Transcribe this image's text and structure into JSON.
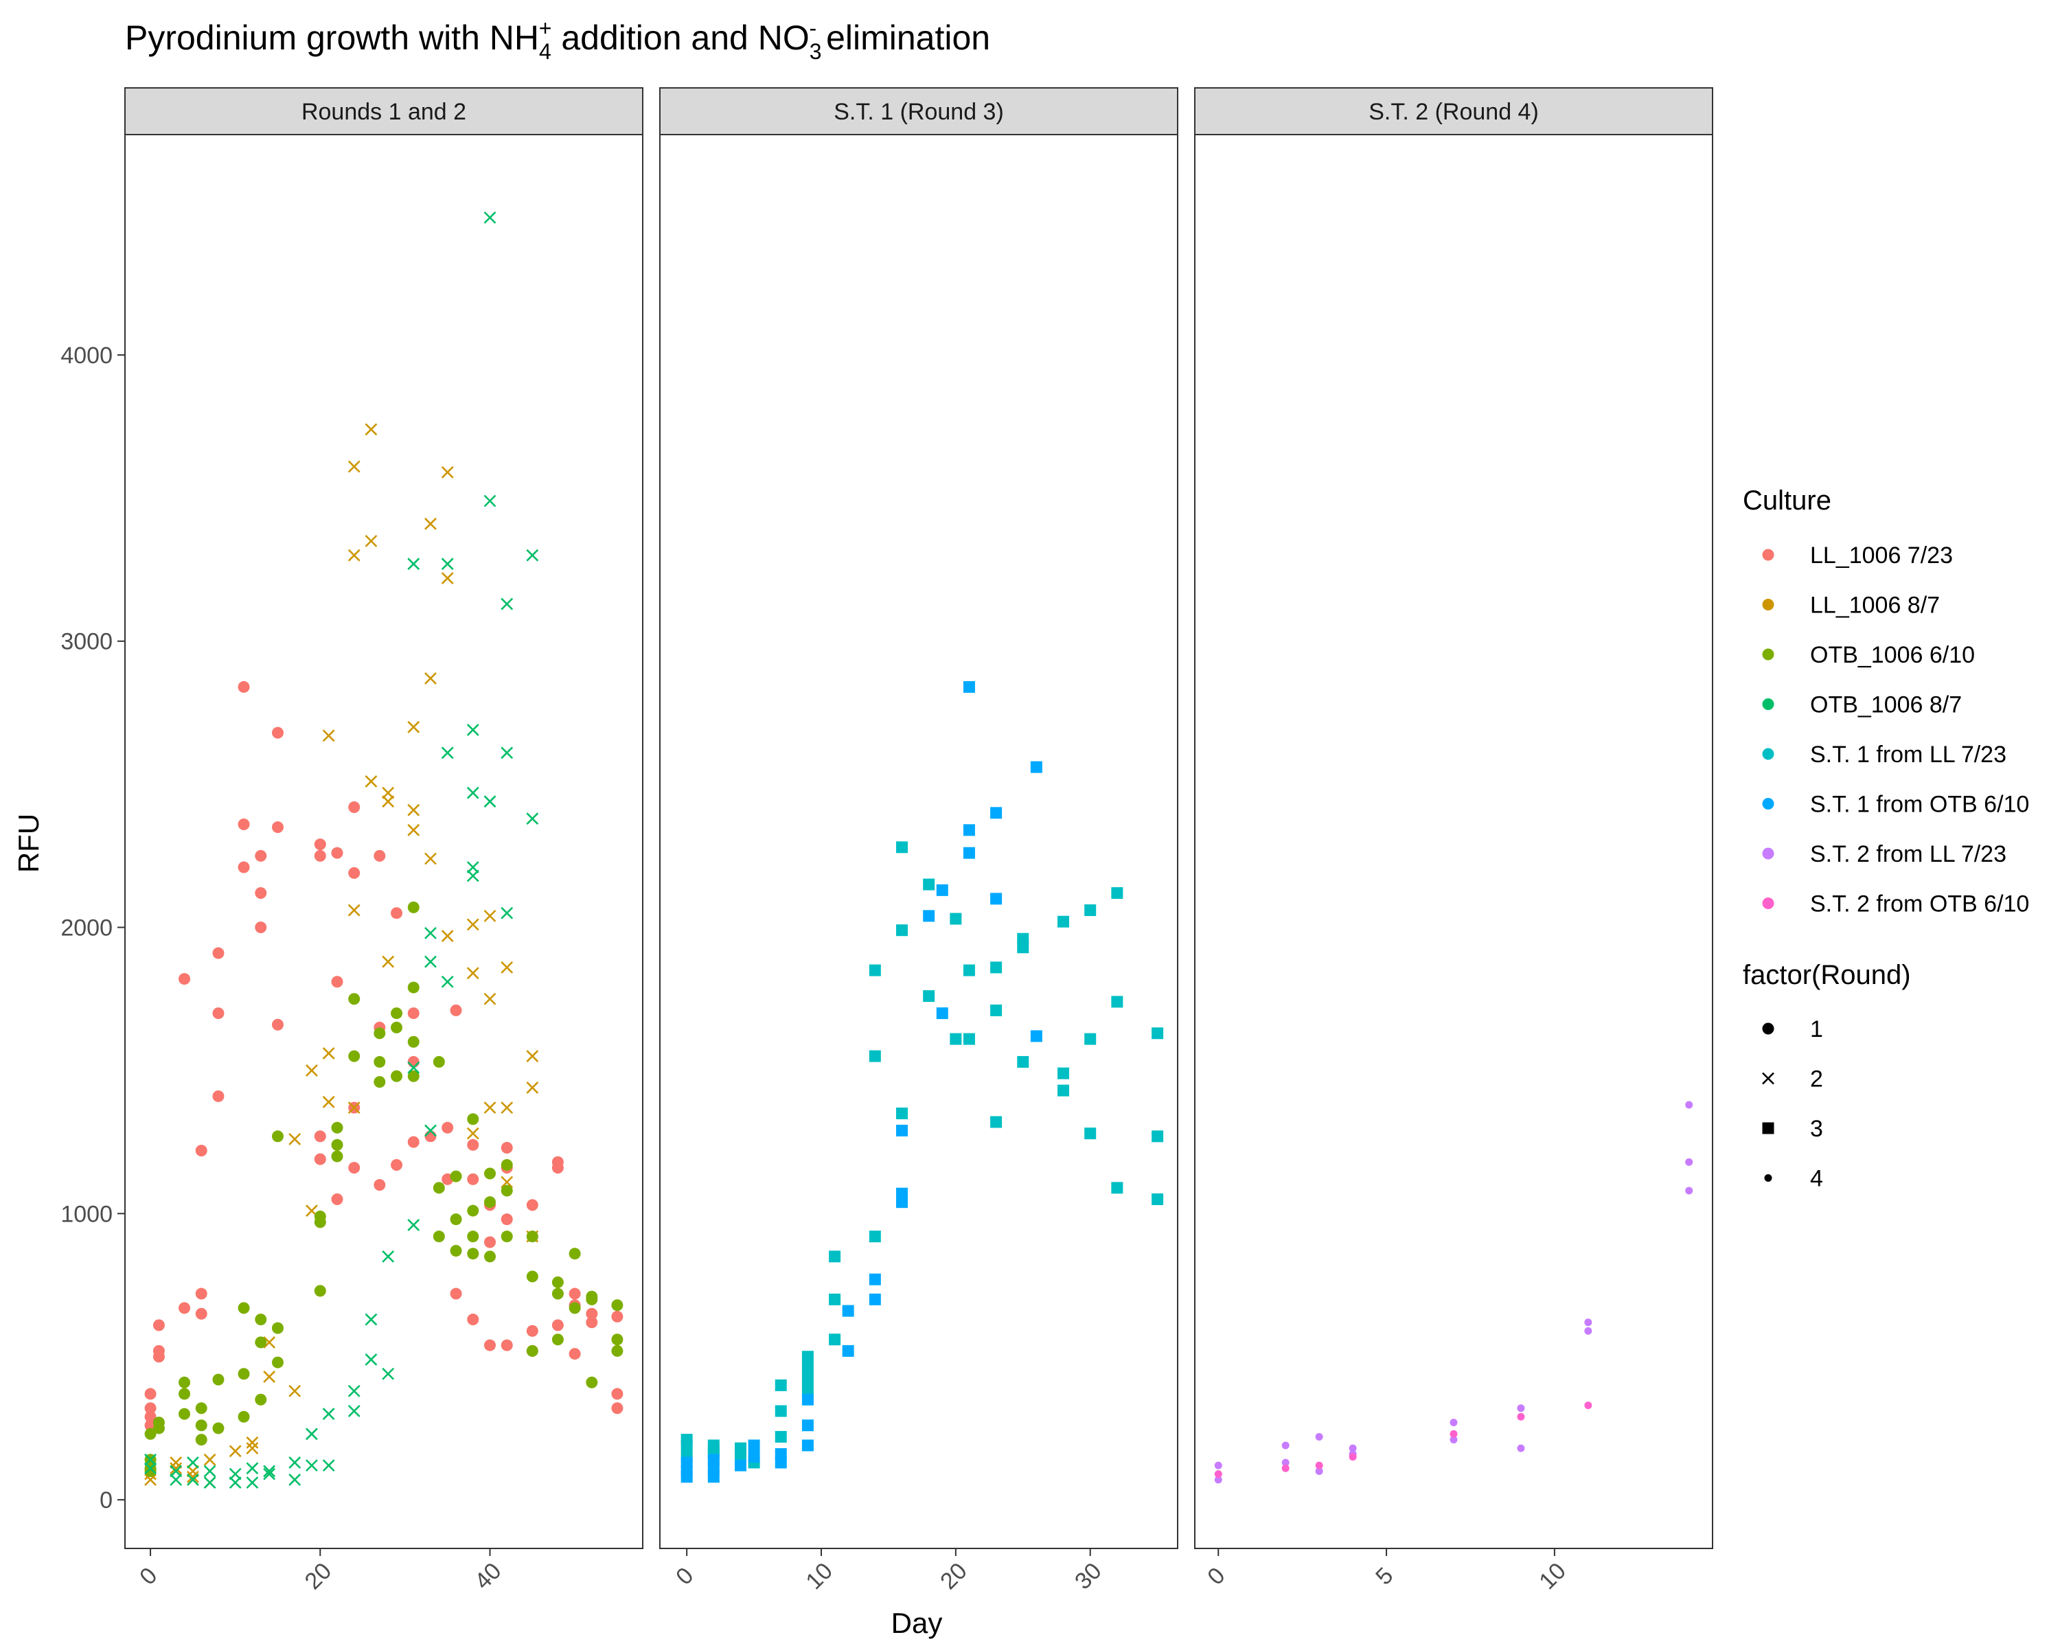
{
  "chart_data": {
    "type": "scatter",
    "title_parts": {
      "t1": "Pyrodinium growth with NH",
      "nh_sub": "4",
      "nh_sup": "+",
      "t2": " addition and NO",
      "no_sub": "3",
      "no_sup": "-",
      "t3": " elimination"
    },
    "xlabel": "Day",
    "ylabel": "RFU",
    "ylim": [
      -170,
      4770
    ],
    "y_ticks": [
      0,
      1000,
      2000,
      3000,
      4000
    ],
    "grid": false,
    "legend_position": "right",
    "legend": {
      "culture_title": "Culture",
      "cultures": [
        {
          "name": "LL_1006 7/23",
          "color": "#F8766D"
        },
        {
          "name": "LL_1006 8/7",
          "color": "#CD9600"
        },
        {
          "name": "OTB_1006 6/10",
          "color": "#7CAE00"
        },
        {
          "name": "OTB_1006 8/7",
          "color": "#00BE67"
        },
        {
          "name": "S.T. 1 from LL 7/23",
          "color": "#00BFC4"
        },
        {
          "name": "S.T. 1 from OTB 6/10",
          "color": "#00A9FF"
        },
        {
          "name": "S.T. 2 from LL 7/23",
          "color": "#C77CFF"
        },
        {
          "name": "S.T. 2 from OTB 6/10",
          "color": "#FF61CC"
        }
      ],
      "round_title": "factor(Round)",
      "rounds": [
        {
          "label": "1",
          "shape": "circle"
        },
        {
          "label": "2",
          "shape": "cross"
        },
        {
          "label": "3",
          "shape": "square"
        },
        {
          "label": "4",
          "shape": "small-circle"
        }
      ]
    },
    "facets": [
      {
        "label": "Rounds 1 and 2",
        "xlim": [
          -3,
          58
        ],
        "x_ticks": [
          0,
          20,
          40
        ],
        "series": [
          {
            "name": "LL_1006 7/23",
            "color": "#F8766D",
            "shape": "circle",
            "x": [
              0,
              0,
              0,
              0,
              1,
              1,
              1,
              4,
              4,
              6,
              6,
              6,
              8,
              8,
              8,
              11,
              11,
              11,
              13,
              13,
              13,
              15,
              15,
              15,
              20,
              20,
              20,
              20,
              22,
              22,
              22,
              24,
              24,
              24,
              24,
              27,
              27,
              27,
              29,
              29,
              31,
              31,
              31,
              33,
              35,
              35,
              36,
              36,
              38,
              38,
              38,
              40,
              40,
              40,
              42,
              42,
              42,
              42,
              45,
              45,
              45,
              45,
              48,
              48,
              48,
              50,
              50,
              50,
              52,
              52,
              55,
              55,
              55
            ],
            "y": [
              370,
              320,
              290,
              260,
              610,
              520,
              500,
              1820,
              670,
              1220,
              720,
              650,
              1910,
              1700,
              1410,
              2840,
              2360,
              2210,
              2250,
              2120,
              2000,
              2680,
              2350,
              1660,
              2290,
              2250,
              1190,
              1270,
              2260,
              1810,
              1050,
              2420,
              2190,
              1370,
              1160,
              2250,
              1650,
              1100,
              2050,
              1170,
              1700,
              1530,
              1250,
              1270,
              1300,
              1120,
              1710,
              720,
              1240,
              1120,
              630,
              1030,
              900,
              540,
              1230,
              1160,
              980,
              540,
              1030,
              920,
              590,
              520,
              1180,
              1160,
              610,
              720,
              680,
              510,
              650,
              620,
              640,
              370,
              320
            ]
          },
          {
            "name": "LL_1006 8/7",
            "color": "#CD9600",
            "shape": "cross",
            "x": [
              0,
              0,
              3,
              3,
              5,
              5,
              7,
              7,
              10,
              12,
              12,
              14,
              14,
              17,
              17,
              19,
              19,
              21,
              21,
              21,
              24,
              24,
              24,
              24,
              26,
              26,
              26,
              28,
              28,
              28,
              31,
              31,
              31,
              33,
              33,
              33,
              35,
              35,
              35,
              38,
              38,
              38,
              40,
              40,
              40,
              42,
              42,
              42,
              45,
              45,
              45
            ],
            "y": [
              90,
              70,
              130,
              110,
              100,
              80,
              140,
              60,
              170,
              200,
              180,
              550,
              430,
              1260,
              380,
              1500,
              1010,
              2670,
              1560,
              1390,
              3610,
              3300,
              2060,
              1370,
              3740,
              3350,
              2510,
              2470,
              2440,
              1880,
              2700,
              2410,
              2340,
              3410,
              2870,
              2240,
              3590,
              3220,
              1970,
              2010,
              1840,
              1280,
              2040,
              1750,
              1370,
              1860,
              1370,
              1110,
              1550,
              1440,
              920
            ]
          },
          {
            "name": "OTB_1006 6/10",
            "color": "#7CAE00",
            "shape": "circle",
            "x": [
              0,
              0,
              0,
              0,
              1,
              1,
              4,
              4,
              4,
              6,
              6,
              6,
              8,
              8,
              11,
              11,
              11,
              13,
              13,
              13,
              15,
              15,
              15,
              20,
              20,
              20,
              22,
              22,
              22,
              24,
              24,
              27,
              27,
              27,
              29,
              29,
              29,
              31,
              31,
              31,
              31,
              34,
              34,
              34,
              36,
              36,
              36,
              38,
              38,
              38,
              38,
              40,
              40,
              40,
              42,
              42,
              42,
              45,
              45,
              45,
              48,
              48,
              48,
              50,
              50,
              52,
              52,
              52,
              55,
              55,
              55
            ],
            "y": [
              230,
              140,
              110,
              100,
              270,
              250,
              410,
              370,
              300,
              320,
              260,
              210,
              420,
              250,
              670,
              440,
              290,
              630,
              550,
              350,
              600,
              480,
              1270,
              990,
              970,
              730,
              1300,
              1240,
              1200,
              1750,
              1550,
              1630,
              1530,
              1460,
              1700,
              1650,
              1480,
              2070,
              1790,
              1600,
              1480,
              1530,
              1090,
              920,
              1130,
              980,
              870,
              1330,
              920,
              860,
              1010,
              1140,
              1040,
              850,
              1170,
              1080,
              920,
              920,
              780,
              520,
              760,
              720,
              560,
              860,
              670,
              710,
              410,
              700,
              680,
              560,
              520
            ]
          },
          {
            "name": "OTB_1006 8/7",
            "color": "#00BE67",
            "shape": "cross",
            "x": [
              0,
              0,
              3,
              3,
              5,
              5,
              7,
              7,
              10,
              10,
              12,
              12,
              14,
              14,
              17,
              17,
              19,
              19,
              21,
              21,
              24,
              24,
              26,
              26,
              28,
              28,
              31,
              31,
              31,
              33,
              33,
              33,
              35,
              35,
              35,
              38,
              38,
              38,
              38,
              40,
              40,
              40,
              42,
              42,
              42,
              45,
              45
            ],
            "y": [
              140,
              110,
              100,
              70,
              130,
              70,
              100,
              60,
              90,
              60,
              110,
              60,
              100,
              90,
              130,
              70,
              230,
              120,
              300,
              120,
              380,
              310,
              630,
              490,
              440,
              850,
              3270,
              1510,
              960,
              1980,
              1880,
              1290,
              3270,
              2610,
              1810,
              2690,
              2470,
              2210,
              2180,
              4480,
              3490,
              2440,
              3130,
              2610,
              2050,
              3300,
              2380
            ]
          }
        ]
      },
      {
        "label": "S.T. 1 (Round 3)",
        "xlim": [
          -2,
          36.5
        ],
        "x_ticks": [
          0,
          10,
          20,
          30
        ],
        "series": [
          {
            "name": "S.T. 1 from LL 7/23",
            "color": "#00BFC4",
            "shape": "square",
            "x": [
              0,
              0,
              0,
              2,
              2,
              2,
              4,
              4,
              4,
              5,
              7,
              7,
              7,
              9,
              9,
              9,
              9,
              11,
              11,
              11,
              14,
              14,
              14,
              16,
              16,
              16,
              18,
              18,
              20,
              20,
              21,
              21,
              23,
              23,
              23,
              25,
              25,
              25,
              28,
              28,
              28,
              30,
              30,
              30,
              32,
              32,
              32,
              35,
              35,
              35
            ],
            "y": [
              210,
              190,
              150,
              190,
              170,
              160,
              180,
              170,
              150,
              130,
              400,
              310,
              220,
              500,
              460,
              420,
              380,
              850,
              700,
              560,
              1850,
              1550,
              920,
              2280,
              1990,
              1350,
              2150,
              1760,
              2030,
              1610,
              1610,
              1850,
              1860,
              1710,
              1320,
              1960,
              1930,
              1530,
              2020,
              1490,
              1430,
              2060,
              1610,
              1280,
              2120,
              1740,
              1090,
              1630,
              1270,
              1050
            ]
          },
          {
            "name": "S.T. 1 from OTB 6/10",
            "color": "#00A9FF",
            "shape": "square",
            "x": [
              0,
              0,
              0,
              2,
              2,
              2,
              4,
              5,
              5,
              7,
              7,
              9,
              9,
              9,
              12,
              12,
              14,
              14,
              16,
              16,
              16,
              18,
              19,
              19,
              21,
              21,
              21,
              23,
              23,
              26,
              26
            ],
            "y": [
              130,
              100,
              80,
              140,
              110,
              80,
              120,
              190,
              150,
              160,
              130,
              350,
              260,
              190,
              660,
              520,
              770,
              700,
              1290,
              1070,
              1040,
              2040,
              2130,
              1700,
              2840,
              2340,
              2260,
              2400,
              2100,
              2560,
              1620
            ]
          }
        ]
      },
      {
        "label": "S.T. 2 (Round 4)",
        "xlim": [
          -0.7,
          14.7
        ],
        "x_ticks": [
          0,
          5,
          10
        ],
        "series": [
          {
            "name": "S.T. 2 from LL 7/23",
            "color": "#C77CFF",
            "shape": "small-circle",
            "x": [
              0,
              0,
              2,
              2,
              3,
              3,
              4,
              4,
              7,
              7,
              9,
              9,
              11,
              11,
              14,
              14,
              14
            ],
            "y": [
              120,
              70,
              190,
              130,
              220,
              100,
              180,
              160,
              270,
              210,
              320,
              180,
              620,
              590,
              1380,
              1180,
              1080
            ]
          },
          {
            "name": "S.T. 2 from OTB 6/10",
            "color": "#FF61CC",
            "shape": "small-circle",
            "x": [
              0,
              2,
              3,
              4,
              7,
              9,
              11
            ],
            "y": [
              90,
              110,
              120,
              150,
              230,
              290,
              330
            ]
          }
        ]
      }
    ]
  }
}
